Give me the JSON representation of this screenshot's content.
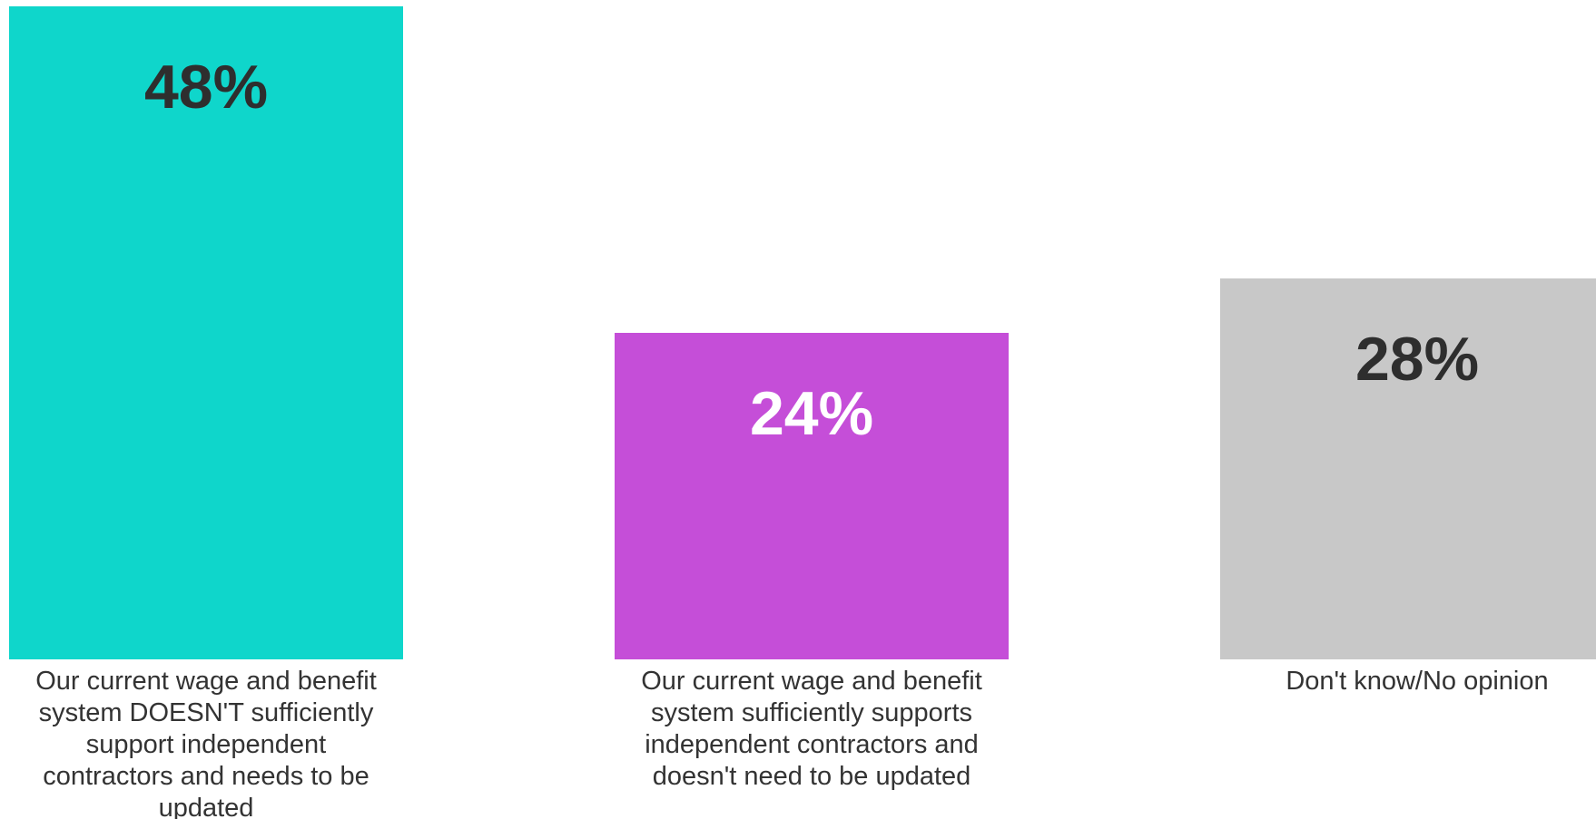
{
  "chart_data": {
    "type": "bar",
    "categories": [
      [
        "Our current wage and benefit",
        "system DOESN'T sufficiently",
        "support independent",
        "contractors and needs to be",
        "updated"
      ],
      [
        "Our current wage and benefit",
        "system sufficiently supports",
        "independent contractors and",
        "doesn't need to be updated"
      ],
      [
        "Don't know/No opinion"
      ]
    ],
    "values": [
      48,
      24,
      28
    ],
    "value_labels": [
      "48%",
      "24%",
      "28%"
    ],
    "unit": "%",
    "ylim": [
      0,
      48
    ],
    "grid": false,
    "legend": "none",
    "colors": [
      "#0fd6cb",
      "#c54ed8",
      "#c8c8c8"
    ],
    "value_label_colors": [
      "#2e2e2e",
      "#ffffff",
      "#2e2e2e"
    ]
  }
}
